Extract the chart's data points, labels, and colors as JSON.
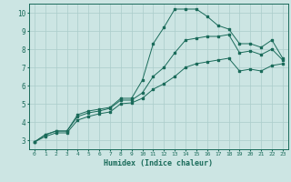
{
  "title": "",
  "xlabel": "Humidex (Indice chaleur)",
  "ylabel": "",
  "bg_color": "#cce5e3",
  "grid_color": "#aaccca",
  "line_color": "#1a6b5a",
  "xlim": [
    -0.5,
    23.5
  ],
  "ylim": [
    2.5,
    10.5
  ],
  "xticks": [
    0,
    1,
    2,
    3,
    4,
    5,
    6,
    7,
    8,
    9,
    10,
    11,
    12,
    13,
    14,
    15,
    16,
    17,
    18,
    19,
    20,
    21,
    22,
    23
  ],
  "yticks": [
    3,
    4,
    5,
    6,
    7,
    8,
    9,
    10
  ],
  "series1_x": [
    0,
    1,
    2,
    3,
    4,
    5,
    6,
    7,
    8,
    9,
    10,
    11,
    12,
    13,
    14,
    15,
    16,
    17,
    18,
    19,
    20,
    21,
    22,
    23
  ],
  "series1_y": [
    2.9,
    3.3,
    3.5,
    3.5,
    4.4,
    4.6,
    4.7,
    4.8,
    5.3,
    5.3,
    6.3,
    8.3,
    9.2,
    10.2,
    10.2,
    10.2,
    9.8,
    9.3,
    9.1,
    8.3,
    8.3,
    8.1,
    8.5,
    7.5
  ],
  "series2_x": [
    0,
    1,
    2,
    3,
    4,
    5,
    6,
    7,
    8,
    9,
    10,
    11,
    12,
    13,
    14,
    15,
    16,
    17,
    18,
    19,
    20,
    21,
    22,
    23
  ],
  "series2_y": [
    2.9,
    3.3,
    3.5,
    3.5,
    4.3,
    4.5,
    4.6,
    4.75,
    5.2,
    5.2,
    5.6,
    6.5,
    7.0,
    7.8,
    8.5,
    8.6,
    8.7,
    8.7,
    8.8,
    7.8,
    7.9,
    7.7,
    8.0,
    7.4
  ],
  "series3_x": [
    0,
    1,
    2,
    3,
    4,
    5,
    6,
    7,
    8,
    9,
    10,
    11,
    12,
    13,
    14,
    15,
    16,
    17,
    18,
    19,
    20,
    21,
    22,
    23
  ],
  "series3_y": [
    2.9,
    3.2,
    3.4,
    3.4,
    4.1,
    4.3,
    4.45,
    4.55,
    5.0,
    5.05,
    5.3,
    5.8,
    6.1,
    6.5,
    7.0,
    7.2,
    7.3,
    7.4,
    7.5,
    6.8,
    6.9,
    6.8,
    7.1,
    7.2
  ],
  "xlabel_fontsize": 6,
  "xtick_fontsize": 4.5,
  "ytick_fontsize": 5.5,
  "linewidth": 0.7,
  "markersize": 1.8
}
